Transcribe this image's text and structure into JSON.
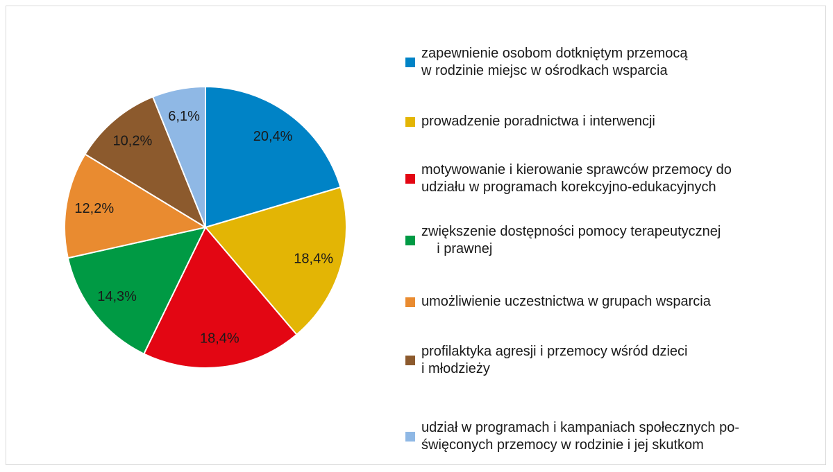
{
  "chart_data": {
    "type": "pie",
    "categories": [
      "zapewnienie osobom dotkniętym przemocą\nw rodzinie miejsc w ośrodkach wsparcia",
      "prowadzenie poradnictwa i interwencji",
      "motywowanie i kierowanie sprawców przemocy do\nudziału w programach korekcyjno-edukacyjnych",
      "zwiększenie dostępności pomocy terapeutycznej\n    i prawnej",
      "umożliwienie uczestnictwa w grupach wsparcia",
      "profilaktyka agresji i przemocy wśród dzieci\ni młodzieży",
      "udział w programach i kampaniach społecznych po-\nświęconych przemocy w rodzinie i jej skutkom"
    ],
    "values": [
      20.4,
      18.4,
      18.4,
      14.3,
      12.2,
      10.2,
      6.1
    ],
    "value_labels": [
      "20,4%",
      "18,4%",
      "18,4%",
      "14,3%",
      "12,2%",
      "10,2%",
      "6,1%"
    ],
    "colors": [
      "#0083c6",
      "#e3b505",
      "#e30613",
      "#009a44",
      "#e98b30",
      "#8c5a2d",
      "#8fb8e5"
    ],
    "legend": "right"
  }
}
